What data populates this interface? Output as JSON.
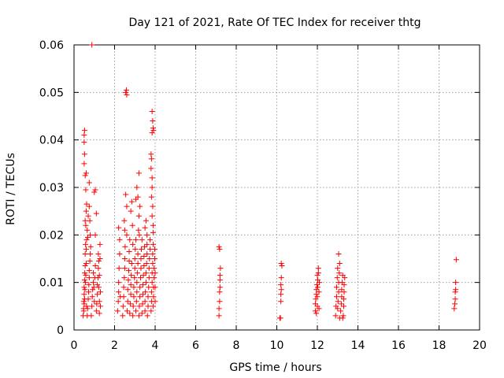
{
  "chart_data": {
    "type": "scatter",
    "title": "Day 121 of 2021, Rate Of TEC Index for receiver thtg",
    "xlabel": "GPS time / hours",
    "ylabel": "ROTI / TECUs",
    "xlim": [
      0,
      20
    ],
    "ylim": [
      0,
      0.06
    ],
    "grid": true,
    "marker": "+",
    "color": "#ff0000",
    "x_ticks": [
      0,
      2,
      4,
      6,
      8,
      10,
      12,
      14,
      16,
      18,
      20
    ],
    "x_tick_labels": [
      "0",
      "2",
      "4",
      "6",
      "8",
      "10",
      "12",
      "14",
      "16",
      "18",
      "20"
    ],
    "y_ticks": [
      0,
      0.01,
      0.02,
      0.03,
      0.04,
      0.05,
      0.06
    ],
    "y_tick_labels": [
      "0",
      "0.01",
      "0.02",
      "0.03",
      "0.04",
      "0.05",
      "0.06"
    ],
    "series": [
      {
        "name": "ROTI",
        "points": [
          [
            0.45,
            0.003
          ],
          [
            0.47,
            0.0045
          ],
          [
            0.48,
            0.006
          ],
          [
            0.5,
            0.0075
          ],
          [
            0.5,
            0.009
          ],
          [
            0.52,
            0.0105
          ],
          [
            0.53,
            0.012
          ],
          [
            0.55,
            0.0135
          ],
          [
            0.55,
            0.016
          ],
          [
            0.57,
            0.018
          ],
          [
            0.48,
            0.004
          ],
          [
            0.5,
            0.0055
          ],
          [
            0.52,
            0.0065
          ],
          [
            0.54,
            0.0085
          ],
          [
            0.56,
            0.01
          ],
          [
            0.58,
            0.0115
          ],
          [
            0.6,
            0.014
          ],
          [
            0.6,
            0.017
          ],
          [
            0.62,
            0.019
          ],
          [
            0.62,
            0.005
          ],
          [
            0.5,
            0.041
          ],
          [
            0.52,
            0.042
          ],
          [
            0.5,
            0.0395
          ],
          [
            0.52,
            0.037
          ],
          [
            0.5,
            0.035
          ],
          [
            0.55,
            0.0325
          ],
          [
            0.6,
            0.033
          ],
          [
            0.58,
            0.0295
          ],
          [
            0.62,
            0.0265
          ],
          [
            0.6,
            0.025
          ],
          [
            0.55,
            0.023
          ],
          [
            0.65,
            0.021
          ],
          [
            0.58,
            0.022
          ],
          [
            0.68,
            0.0195
          ],
          [
            0.65,
            0.003
          ],
          [
            0.67,
            0.0045
          ],
          [
            0.7,
            0.0065
          ],
          [
            0.72,
            0.008
          ],
          [
            0.73,
            0.0095
          ],
          [
            0.75,
            0.011
          ],
          [
            0.75,
            0.0125
          ],
          [
            0.78,
            0.0145
          ],
          [
            0.8,
            0.016
          ],
          [
            0.82,
            0.0175
          ],
          [
            0.7,
            0.024
          ],
          [
            0.75,
            0.031
          ],
          [
            0.75,
            0.026
          ],
          [
            0.8,
            0.02
          ],
          [
            0.78,
            0.023
          ],
          [
            0.85,
            0.003
          ],
          [
            0.88,
            0.005
          ],
          [
            0.9,
            0.007
          ],
          [
            0.92,
            0.0085
          ],
          [
            0.95,
            0.01
          ],
          [
            0.95,
            0.012
          ],
          [
            0.98,
            0.009
          ],
          [
            1.0,
            0.006
          ],
          [
            1.02,
            0.011
          ],
          [
            1.05,
            0.0135
          ],
          [
            0.88,
            0.06
          ],
          [
            1.0,
            0.029
          ],
          [
            1.05,
            0.0295
          ],
          [
            1.1,
            0.0245
          ],
          [
            1.05,
            0.02
          ],
          [
            1.1,
            0.004
          ],
          [
            1.12,
            0.0055
          ],
          [
            1.15,
            0.0075
          ],
          [
            1.15,
            0.0095
          ],
          [
            1.18,
            0.011
          ],
          [
            1.2,
            0.013
          ],
          [
            1.22,
            0.0145
          ],
          [
            1.2,
            0.016
          ],
          [
            1.25,
            0.0035
          ],
          [
            1.25,
            0.006
          ],
          [
            1.22,
            0.009
          ],
          [
            1.25,
            0.0115
          ],
          [
            1.28,
            0.015
          ],
          [
            1.28,
            0.018
          ],
          [
            1.3,
            0.005
          ],
          [
            1.3,
            0.008
          ],
          [
            2.15,
            0.004
          ],
          [
            2.18,
            0.006
          ],
          [
            2.2,
            0.008
          ],
          [
            2.2,
            0.01
          ],
          [
            2.22,
            0.013
          ],
          [
            2.25,
            0.016
          ],
          [
            2.25,
            0.019
          ],
          [
            2.2,
            0.0215
          ],
          [
            2.28,
            0.007
          ],
          [
            2.4,
            0.003
          ],
          [
            2.42,
            0.005
          ],
          [
            2.45,
            0.007
          ],
          [
            2.45,
            0.009
          ],
          [
            2.48,
            0.011
          ],
          [
            2.5,
            0.013
          ],
          [
            2.5,
            0.015
          ],
          [
            2.52,
            0.0175
          ],
          [
            2.5,
            0.021
          ],
          [
            2.48,
            0.023
          ],
          [
            2.55,
            0.05
          ],
          [
            2.58,
            0.0505
          ],
          [
            2.6,
            0.0495
          ],
          [
            2.55,
            0.0285
          ],
          [
            2.6,
            0.026
          ],
          [
            2.6,
            0.02
          ],
          [
            2.62,
            0.004
          ],
          [
            2.65,
            0.006
          ],
          [
            2.65,
            0.0085
          ],
          [
            2.68,
            0.0105
          ],
          [
            2.7,
            0.0125
          ],
          [
            2.72,
            0.0145
          ],
          [
            2.72,
            0.0165
          ],
          [
            2.75,
            0.019
          ],
          [
            2.75,
            0.0035
          ],
          [
            2.78,
            0.0055
          ],
          [
            2.8,
            0.0075
          ],
          [
            2.8,
            0.0095
          ],
          [
            2.82,
            0.0115
          ],
          [
            2.85,
            0.014
          ],
          [
            2.8,
            0.025
          ],
          [
            2.85,
            0.027
          ],
          [
            2.88,
            0.022
          ],
          [
            2.9,
            0.018
          ],
          [
            2.9,
            0.003
          ],
          [
            2.92,
            0.005
          ],
          [
            2.95,
            0.007
          ],
          [
            2.95,
            0.009
          ],
          [
            2.98,
            0.011
          ],
          [
            3.0,
            0.013
          ],
          [
            3.0,
            0.015
          ],
          [
            3.02,
            0.017
          ],
          [
            3.05,
            0.019
          ],
          [
            3.05,
            0.004
          ],
          [
            3.08,
            0.006
          ],
          [
            3.1,
            0.008
          ],
          [
            3.1,
            0.01
          ],
          [
            3.12,
            0.012
          ],
          [
            3.15,
            0.014
          ],
          [
            3.15,
            0.016
          ],
          [
            3.2,
            0.033
          ],
          [
            3.1,
            0.03
          ],
          [
            3.05,
            0.0275
          ],
          [
            3.15,
            0.028
          ],
          [
            3.25,
            0.026
          ],
          [
            3.2,
            0.024
          ],
          [
            3.18,
            0.021
          ],
          [
            3.22,
            0.02
          ],
          [
            3.2,
            0.003
          ],
          [
            3.22,
            0.005
          ],
          [
            3.25,
            0.007
          ],
          [
            3.25,
            0.009
          ],
          [
            3.28,
            0.011
          ],
          [
            3.3,
            0.013
          ],
          [
            3.3,
            0.015
          ],
          [
            3.32,
            0.017
          ],
          [
            3.35,
            0.019
          ],
          [
            3.35,
            0.0035
          ],
          [
            3.38,
            0.0055
          ],
          [
            3.4,
            0.0075
          ],
          [
            3.4,
            0.0095
          ],
          [
            3.42,
            0.0115
          ],
          [
            3.45,
            0.0135
          ],
          [
            3.45,
            0.0155
          ],
          [
            3.48,
            0.0175
          ],
          [
            3.5,
            0.004
          ],
          [
            3.5,
            0.006
          ],
          [
            3.52,
            0.008
          ],
          [
            3.55,
            0.01
          ],
          [
            3.55,
            0.012
          ],
          [
            3.58,
            0.014
          ],
          [
            3.6,
            0.016
          ],
          [
            3.6,
            0.018
          ],
          [
            3.62,
            0.003
          ],
          [
            3.65,
            0.005
          ],
          [
            3.65,
            0.007
          ],
          [
            3.68,
            0.009
          ],
          [
            3.7,
            0.011
          ],
          [
            3.7,
            0.013
          ],
          [
            3.72,
            0.015
          ],
          [
            3.75,
            0.017
          ],
          [
            3.75,
            0.019
          ],
          [
            3.5,
            0.0215
          ],
          [
            3.55,
            0.023
          ],
          [
            3.6,
            0.02
          ],
          [
            3.8,
            0.004
          ],
          [
            3.82,
            0.006
          ],
          [
            3.82,
            0.008
          ],
          [
            3.85,
            0.01
          ],
          [
            3.85,
            0.012
          ],
          [
            3.88,
            0.014
          ],
          [
            3.88,
            0.016
          ],
          [
            3.9,
            0.018
          ],
          [
            3.9,
            0.005
          ],
          [
            3.92,
            0.007
          ],
          [
            3.92,
            0.009
          ],
          [
            3.95,
            0.011
          ],
          [
            3.95,
            0.013
          ],
          [
            3.98,
            0.015
          ],
          [
            3.98,
            0.017
          ],
          [
            4.0,
            0.006
          ],
          [
            4.0,
            0.009
          ],
          [
            4.0,
            0.012
          ],
          [
            3.8,
            0.037
          ],
          [
            3.82,
            0.036
          ],
          [
            3.8,
            0.034
          ],
          [
            3.85,
            0.032
          ],
          [
            3.85,
            0.03
          ],
          [
            3.82,
            0.028
          ],
          [
            3.88,
            0.026
          ],
          [
            3.85,
            0.024
          ],
          [
            3.9,
            0.022
          ],
          [
            3.9,
            0.0205
          ],
          [
            3.85,
            0.046
          ],
          [
            3.88,
            0.044
          ],
          [
            3.9,
            0.0425
          ],
          [
            3.85,
            0.0415
          ],
          [
            3.92,
            0.042
          ],
          [
            7.15,
            0.003
          ],
          [
            7.15,
            0.0045
          ],
          [
            7.18,
            0.006
          ],
          [
            7.18,
            0.008
          ],
          [
            7.2,
            0.009
          ],
          [
            7.2,
            0.0105
          ],
          [
            7.2,
            0.0115
          ],
          [
            7.22,
            0.013
          ],
          [
            7.15,
            0.0175
          ],
          [
            7.18,
            0.017
          ],
          [
            10.15,
            0.0025
          ],
          [
            10.18,
            0.0025
          ],
          [
            10.2,
            0.006
          ],
          [
            10.2,
            0.0075
          ],
          [
            10.22,
            0.0085
          ],
          [
            10.2,
            0.0095
          ],
          [
            10.22,
            0.011
          ],
          [
            10.25,
            0.0135
          ],
          [
            10.22,
            0.014
          ],
          [
            11.9,
            0.004
          ],
          [
            11.9,
            0.0055
          ],
          [
            11.92,
            0.0065
          ],
          [
            11.95,
            0.0075
          ],
          [
            11.95,
            0.0085
          ],
          [
            11.98,
            0.0095
          ],
          [
            12.0,
            0.005
          ],
          [
            12.0,
            0.007
          ],
          [
            12.02,
            0.009
          ],
          [
            12.02,
            0.0105
          ],
          [
            12.05,
            0.012
          ],
          [
            12.05,
            0.013
          ],
          [
            12.08,
            0.0045
          ],
          [
            12.08,
            0.008
          ],
          [
            12.1,
            0.01
          ],
          [
            11.95,
            0.0035
          ],
          [
            12.0,
            0.0115
          ],
          [
            12.9,
            0.003
          ],
          [
            12.92,
            0.005
          ],
          [
            12.95,
            0.007
          ],
          [
            12.95,
            0.009
          ],
          [
            12.98,
            0.011
          ],
          [
            13.0,
            0.013
          ],
          [
            13.0,
            0.0045
          ],
          [
            13.02,
            0.006
          ],
          [
            13.05,
            0.008
          ],
          [
            13.05,
            0.01
          ],
          [
            13.08,
            0.012
          ],
          [
            13.05,
            0.016
          ],
          [
            13.1,
            0.014
          ],
          [
            13.15,
            0.004
          ],
          [
            13.18,
            0.0055
          ],
          [
            13.2,
            0.007
          ],
          [
            13.2,
            0.0085
          ],
          [
            13.22,
            0.01
          ],
          [
            13.25,
            0.0115
          ],
          [
            13.28,
            0.003
          ],
          [
            13.3,
            0.005
          ],
          [
            13.3,
            0.0065
          ],
          [
            13.32,
            0.008
          ],
          [
            13.32,
            0.0095
          ],
          [
            13.35,
            0.011
          ],
          [
            13.1,
            0.0025
          ],
          [
            13.25,
            0.0025
          ],
          [
            18.75,
            0.0045
          ],
          [
            18.78,
            0.0055
          ],
          [
            18.8,
            0.0065
          ],
          [
            18.8,
            0.008
          ],
          [
            18.82,
            0.0085
          ],
          [
            18.82,
            0.01
          ],
          [
            18.85,
            0.0148
          ]
        ]
      }
    ]
  }
}
